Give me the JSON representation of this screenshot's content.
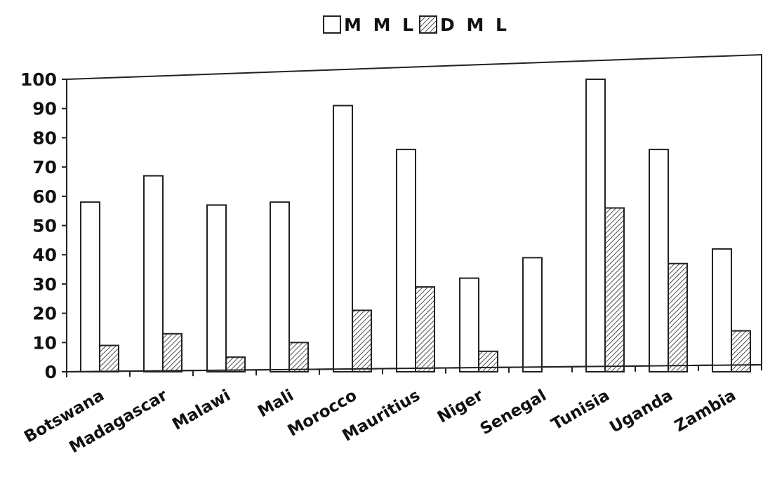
{
  "chart_data": {
    "type": "bar",
    "title": "",
    "xlabel": "",
    "ylabel": "",
    "categories": [
      "Botswana",
      "Madagascar",
      "Malawi",
      "Mali",
      "Morocco",
      "Mauritius",
      "Niger",
      "Senegal",
      "Tunisia",
      "Uganda",
      "Zambia"
    ],
    "series": [
      {
        "name": "MML",
        "fill": "#ffffff",
        "pattern": "none",
        "values": [
          58,
          67,
          57,
          58,
          91,
          76,
          32,
          39,
          100,
          76,
          42
        ]
      },
      {
        "name": "DML",
        "fill": "#ffffff",
        "pattern": "diagonal-hatch",
        "values": [
          9,
          13,
          5,
          10,
          21,
          29,
          7,
          0,
          56,
          37,
          14
        ]
      }
    ],
    "ylim": [
      0,
      100
    ],
    "yticks": [
      "0",
      "10",
      "20",
      "30",
      "40",
      "50",
      "60",
      "70",
      "80",
      "90",
      "100"
    ],
    "grid": false,
    "legend_position": "top-center",
    "legend_labels": [
      "M M L",
      "D M L"
    ]
  }
}
